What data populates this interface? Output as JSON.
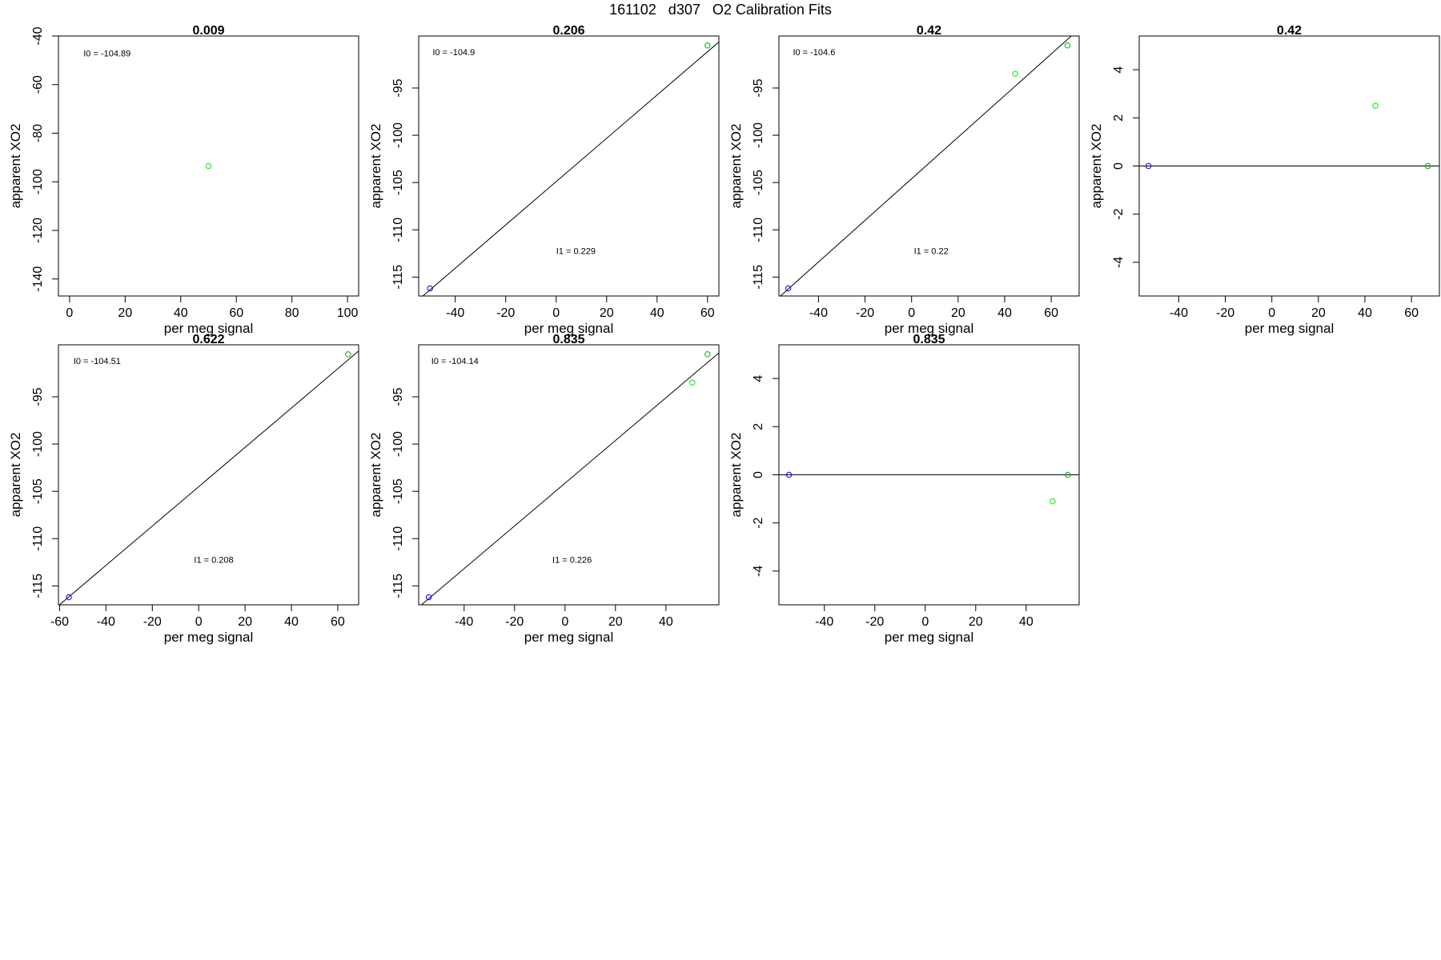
{
  "page": {
    "title": "161102   d307   O2 Calibration Fits"
  },
  "colors": {
    "frame": "#000000",
    "fit_line": "#000000",
    "low_standard": "#0000ff",
    "high_standard": "#00aa00",
    "sample": "#00ee00"
  },
  "chart_data": [
    {
      "type": "scatter",
      "title": "0.009",
      "xlabel": "per meg signal",
      "ylabel": "apparent XO2",
      "xlim": [
        -4,
        104
      ],
      "ylim": [
        -147,
        -40
      ],
      "xticks": [
        "0",
        "20",
        "40",
        "60",
        "80",
        "100"
      ],
      "yticks": [
        "-40",
        "-60",
        "-80",
        "-100",
        "-120",
        "-140"
      ],
      "annotations": [
        {
          "text": "I0 =  -104.89",
          "x": 5,
          "y": -47
        }
      ],
      "points": [
        {
          "x": 50,
          "y": -93.5,
          "color": "#00ee00"
        }
      ],
      "fit_line": null,
      "grid": false
    },
    {
      "type": "scatter",
      "title": "0.206",
      "xlabel": "per meg signal",
      "ylabel": "apparent XO2",
      "xlim": [
        -54.5,
        64.5
      ],
      "ylim": [
        -117,
        -89.5
      ],
      "xticks": [
        "-40",
        "-20",
        "0",
        "20",
        "40",
        "60"
      ],
      "yticks": [
        "-95",
        "-100",
        "-105",
        "-110",
        "-115"
      ],
      "annotations": [
        {
          "text": "I0 =  -104.9",
          "x": -49,
          "y": -91.2
        },
        {
          "text": "I1 =  0.229",
          "x": 0,
          "y": -112.2
        }
      ],
      "points": [
        {
          "x": -50,
          "y": -116.2,
          "color": "#0000ff"
        },
        {
          "x": 60,
          "y": -90.5,
          "color": "#00aa00"
        }
      ],
      "fit_line": {
        "intercept": -104.9,
        "slope": 0.229
      },
      "grid": false
    },
    {
      "type": "scatter",
      "title": "0.42",
      "xlabel": "per meg signal",
      "ylabel": "apparent XO2",
      "xlim": [
        -57,
        72
      ],
      "ylim": [
        -117,
        -89.5
      ],
      "xticks": [
        "-40",
        "-20",
        "0",
        "20",
        "40",
        "60"
      ],
      "yticks": [
        "-95",
        "-100",
        "-105",
        "-110",
        "-115"
      ],
      "annotations": [
        {
          "text": "I0 =  -104.6",
          "x": -51,
          "y": -91.2
        },
        {
          "text": "I1 =  0.22",
          "x": 1,
          "y": -112.2
        }
      ],
      "points": [
        {
          "x": -53,
          "y": -116.2,
          "color": "#0000ff"
        },
        {
          "x": 67,
          "y": -90.5,
          "color": "#00aa00"
        },
        {
          "x": 44.5,
          "y": -93.5,
          "color": "#00ee00"
        }
      ],
      "fit_line": {
        "intercept": -104.6,
        "slope": 0.22
      },
      "grid": false
    },
    {
      "type": "scatter",
      "title": "0.42",
      "xlabel": "per meg signal",
      "ylabel": "apparent XO2",
      "xlim": [
        -57,
        72
      ],
      "ylim": [
        -5.4,
        5.4
      ],
      "xticks": [
        "-40",
        "-20",
        "0",
        "20",
        "40",
        "60"
      ],
      "yticks": [
        "4",
        "2",
        "0",
        "-2",
        "-4"
      ],
      "annotations": [],
      "points": [
        {
          "x": -53,
          "y": 0,
          "color": "#0000ff"
        },
        {
          "x": 67,
          "y": 0,
          "color": "#00aa00"
        },
        {
          "x": 44.5,
          "y": 2.5,
          "color": "#00ee00"
        }
      ],
      "fit_line": {
        "intercept": 0,
        "slope": 0
      },
      "grid": false
    },
    {
      "type": "scatter",
      "title": "0.622",
      "xlabel": "per meg signal",
      "ylabel": "apparent XO2",
      "xlim": [
        -60.5,
        69
      ],
      "ylim": [
        -117,
        -89.5
      ],
      "xticks": [
        "-60",
        "-40",
        "-20",
        "0",
        "20",
        "40",
        "60"
      ],
      "yticks": [
        "-95",
        "-100",
        "-105",
        "-110",
        "-115"
      ],
      "annotations": [
        {
          "text": "I0 =  -104.51",
          "x": -54,
          "y": -91.2
        },
        {
          "text": "I1 =  0.208",
          "x": -2,
          "y": -112.2
        }
      ],
      "points": [
        {
          "x": -56,
          "y": -116.2,
          "color": "#0000ff"
        },
        {
          "x": 64.5,
          "y": -90.5,
          "color": "#00aa00"
        }
      ],
      "fit_line": {
        "intercept": -104.51,
        "slope": 0.208
      },
      "grid": false
    },
    {
      "type": "scatter",
      "title": "0.835",
      "xlabel": "per meg signal",
      "ylabel": "apparent XO2",
      "xlim": [
        -58,
        61
      ],
      "ylim": [
        -117,
        -89.5
      ],
      "xticks": [
        "-40",
        "-20",
        "0",
        "20",
        "40"
      ],
      "yticks": [
        "-95",
        "-100",
        "-105",
        "-110",
        "-115"
      ],
      "annotations": [
        {
          "text": "I0 =  -104.14",
          "x": -53,
          "y": -91.2
        },
        {
          "text": "I1 =  0.226",
          "x": -5,
          "y": -112.2
        }
      ],
      "points": [
        {
          "x": -54,
          "y": -116.2,
          "color": "#0000ff"
        },
        {
          "x": 56.5,
          "y": -90.5,
          "color": "#00aa00"
        },
        {
          "x": 50.5,
          "y": -93.5,
          "color": "#00ee00"
        }
      ],
      "fit_line": {
        "intercept": -104.14,
        "slope": 0.226
      },
      "grid": false
    },
    {
      "type": "scatter",
      "title": "0.835",
      "xlabel": "per meg signal",
      "ylabel": "apparent XO2",
      "xlim": [
        -58,
        61
      ],
      "ylim": [
        -5.4,
        5.4
      ],
      "xticks": [
        "-40",
        "-20",
        "0",
        "20",
        "40"
      ],
      "yticks": [
        "4",
        "2",
        "0",
        "-2",
        "-4"
      ],
      "annotations": [],
      "points": [
        {
          "x": -54,
          "y": 0,
          "color": "#0000ff"
        },
        {
          "x": 56.5,
          "y": 0,
          "color": "#00aa00"
        },
        {
          "x": 50.5,
          "y": -1.1,
          "color": "#00ee00"
        }
      ],
      "fit_line": {
        "intercept": 0,
        "slope": 0
      },
      "grid": false
    }
  ]
}
